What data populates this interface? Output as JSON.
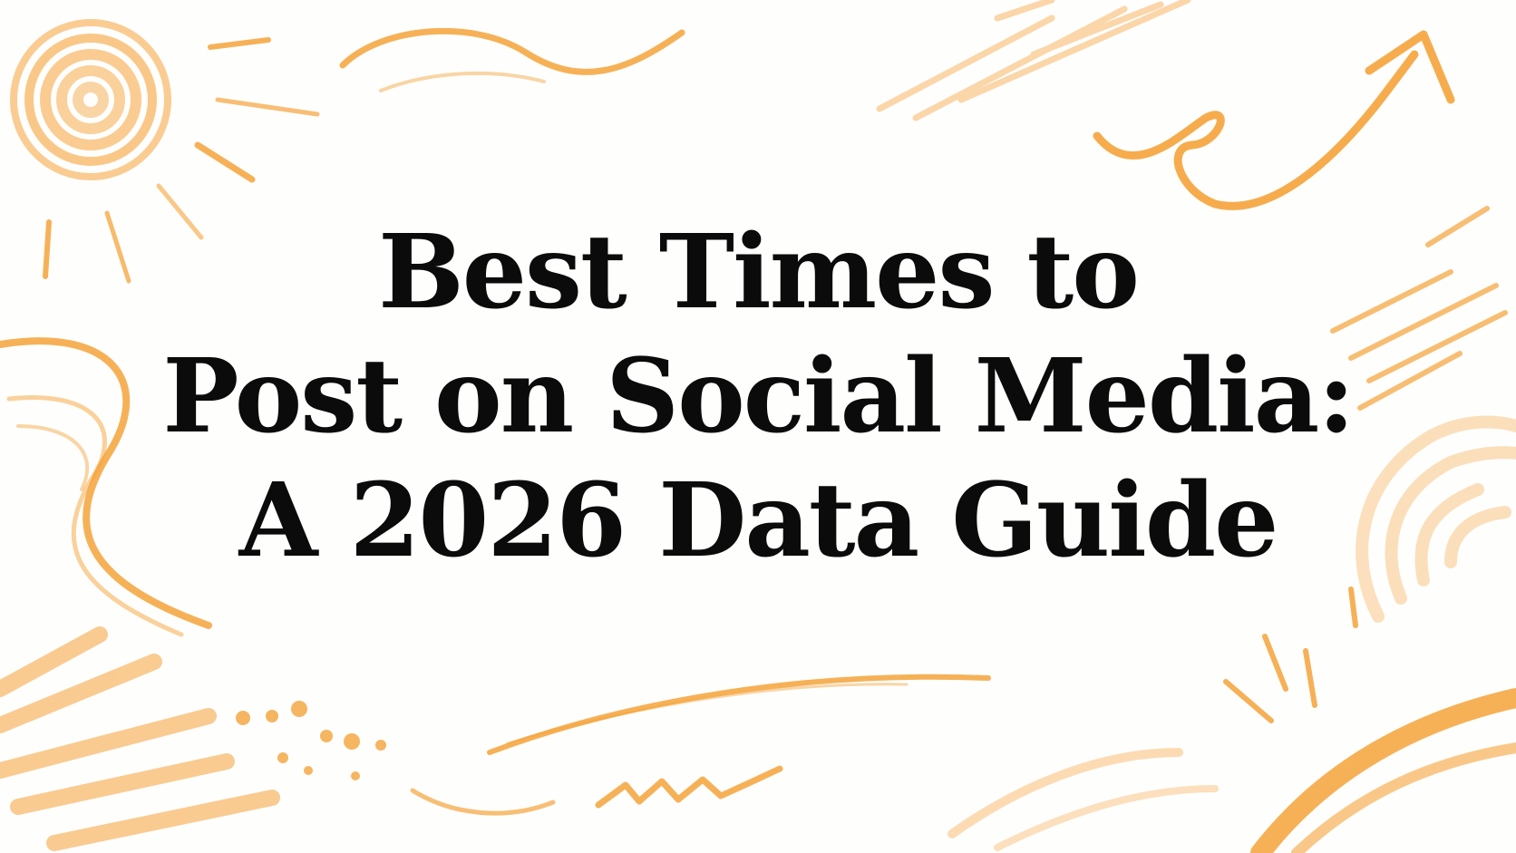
{
  "title": {
    "lines": [
      "Best Times to",
      "Post on Social Media:",
      "A 2026 Data Guide"
    ]
  },
  "colors": {
    "accent": "#f5a33a",
    "accent_light": "#fbd2a0",
    "text": "#0b0b0b",
    "background": "#fefefd"
  }
}
